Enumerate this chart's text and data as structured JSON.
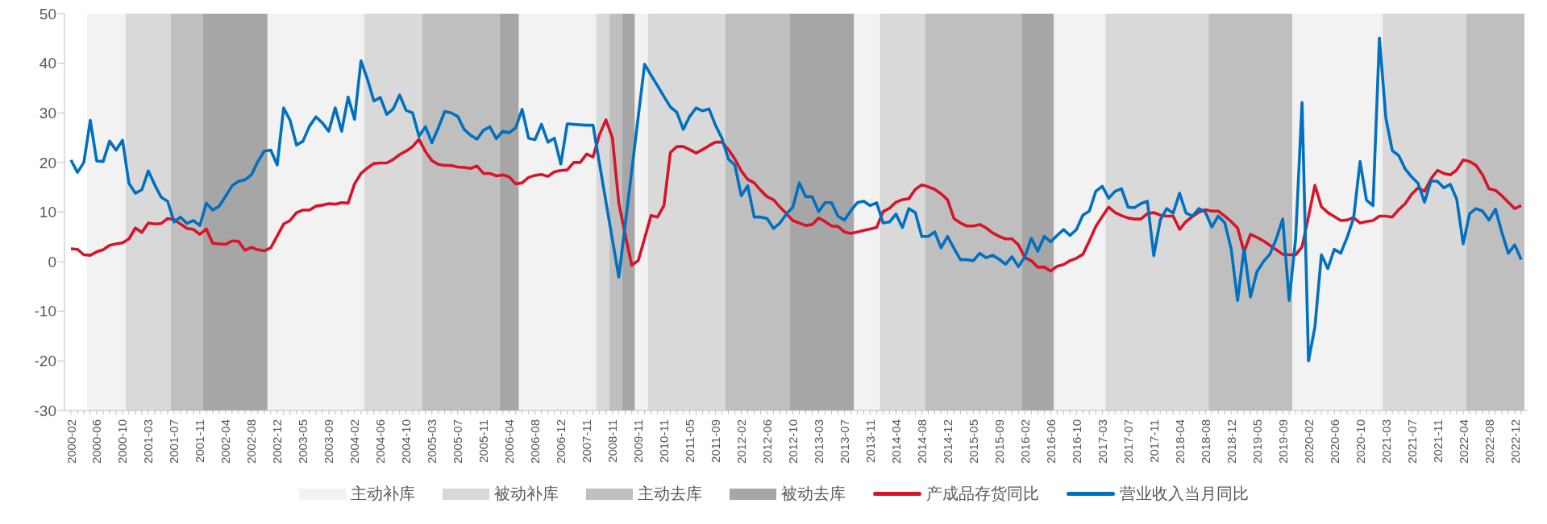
{
  "chart_data": {
    "type": "line",
    "legend": "bottom",
    "ylim": [
      -30,
      50
    ],
    "yticks": [
      -30,
      -20,
      -10,
      0,
      10,
      20,
      30,
      40,
      50
    ],
    "categories": [
      "2000-02",
      null,
      null,
      null,
      "2000-06",
      null,
      null,
      null,
      "2000-10",
      null,
      null,
      null,
      "2001-03",
      null,
      null,
      null,
      "2001-07",
      null,
      null,
      null,
      "2001-11",
      null,
      null,
      null,
      "2002-04",
      null,
      null,
      null,
      "2002-08",
      null,
      null,
      null,
      "2002-12",
      null,
      null,
      null,
      "2003-05",
      null,
      null,
      null,
      "2003-09",
      null,
      null,
      null,
      "2004-02",
      null,
      null,
      null,
      "2004-06",
      null,
      null,
      null,
      "2004-10",
      null,
      null,
      null,
      "2005-03",
      null,
      null,
      null,
      "2005-07",
      null,
      null,
      null,
      "2005-11",
      null,
      null,
      null,
      "2006-04",
      null,
      null,
      null,
      "2006-08",
      null,
      null,
      null,
      "2006-12",
      null,
      null,
      null,
      "2007-11",
      null,
      null,
      null,
      "2008-11",
      null,
      null,
      null,
      "2009-11",
      null,
      null,
      null,
      "2010-11",
      null,
      null,
      null,
      "2011-05",
      null,
      null,
      null,
      "2011-09",
      null,
      null,
      null,
      "2012-02",
      null,
      null,
      null,
      "2012-06",
      null,
      null,
      null,
      "2012-10",
      null,
      null,
      null,
      "2013-03",
      null,
      null,
      null,
      "2013-07",
      null,
      null,
      null,
      "2013-11",
      null,
      null,
      null,
      "2014-04",
      null,
      null,
      null,
      "2014-08",
      null,
      null,
      null,
      "2014-12",
      null,
      null,
      null,
      "2015-05",
      null,
      null,
      null,
      "2015-09",
      null,
      null,
      null,
      "2016-02",
      null,
      null,
      null,
      "2016-06",
      null,
      null,
      null,
      "2016-10",
      null,
      null,
      null,
      "2017-03",
      null,
      null,
      null,
      "2017-07",
      null,
      null,
      null,
      "2017-11",
      null,
      null,
      null,
      "2018-04",
      null,
      null,
      null,
      "2018-08",
      null,
      null,
      null,
      "2018-12",
      null,
      null,
      null,
      "2019-05",
      null,
      null,
      null,
      "2019-09",
      null,
      null,
      null,
      "2020-02",
      null,
      null,
      null,
      "2020-06",
      null,
      null,
      null,
      "2020-10",
      null,
      null,
      null,
      "2021-03",
      null,
      null,
      null,
      "2021-07",
      null,
      null,
      null,
      "2021-11",
      null,
      null,
      null,
      "2022-04",
      null,
      null,
      null,
      "2022-08",
      null,
      null,
      null,
      "2022-12",
      null
    ],
    "annotations": [
      "主动补库",
      "被动补库",
      "主动去库",
      "被动去库"
    ],
    "series": [
      {
        "name": "产成品存货同比",
        "color": "#d7142a",
        "values": [
          2.6,
          2.5,
          1.4,
          1.3,
          2,
          2.4,
          3.3,
          3.6,
          3.8,
          4.6,
          6.8,
          5.9,
          7.8,
          7.6,
          7.7,
          8.7,
          8.5,
          7.6,
          6.7,
          6.5,
          5.5,
          6.6,
          3.7,
          3.6,
          3.5,
          4.2,
          4.1,
          2.3,
          2.9,
          2.4,
          2.2,
          2.8,
          5.2,
          7.6,
          8.3,
          9.9,
          10.4,
          10.4,
          11.2,
          11.4,
          11.7,
          11.6,
          11.9,
          11.8,
          15.7,
          17.8,
          18.9,
          19.8,
          19.9,
          19.9,
          20.6,
          21.6,
          22.3,
          23.2,
          24.7,
          22.2,
          20.4,
          19.6,
          19.4,
          19.4,
          19.1,
          19,
          18.8,
          19.3,
          17.8,
          17.8,
          17.3,
          17.5,
          17.1,
          15.7,
          15.9,
          17,
          17.4,
          17.6,
          17.2,
          18.1,
          18.4,
          18.5,
          20,
          20,
          21.7,
          21.1,
          25.6,
          28.6,
          25,
          11.8,
          5.4,
          -0.7,
          0.2,
          4.7,
          9.3,
          9,
          11.3,
          22,
          23.2,
          23.2,
          22.6,
          21.9,
          22.6,
          23.4,
          24.1,
          24.1,
          22.6,
          20.7,
          18.3,
          16.6,
          15.9,
          14.4,
          13.1,
          12.5,
          11,
          9.7,
          8.3,
          7.8,
          7.3,
          7.5,
          8.8,
          8.1,
          7.2,
          7.1,
          6,
          5.7,
          6,
          6.3,
          6.6,
          6.9,
          10.1,
          10.8,
          12,
          12.5,
          12.7,
          14.6,
          15.5,
          15.1,
          14.6,
          13.7,
          12.5,
          8.7,
          7.8,
          7.2,
          7.2,
          7.5,
          6.8,
          5.8,
          5.1,
          4.6,
          4.6,
          3.4,
          0.8,
          0.2,
          -1.1,
          -1.1,
          -1.9,
          -0.9,
          -0.6,
          0.2,
          0.7,
          1.5,
          4.2,
          7.1,
          9.1,
          11,
          9.9,
          9.3,
          8.8,
          8.6,
          8.6,
          9.7,
          9.9,
          9.4,
          9.2,
          9.2,
          6.5,
          8.1,
          9.1,
          10,
          10.5,
          10.2,
          10.2,
          9.2,
          8.1,
          6.8,
          2,
          5.5,
          4.9,
          4.2,
          3.3,
          2.4,
          1.5,
          1.4,
          1.4,
          3,
          9.1,
          15.4,
          11.1,
          9.9,
          9.1,
          8.3,
          8.4,
          8.9,
          7.8,
          8.1,
          8.3,
          9.2,
          9.2,
          9,
          10.5,
          11.7,
          13.6,
          14.9,
          14.2,
          16.7,
          18.4,
          17.8,
          17.5,
          18.5,
          20.5,
          20.2,
          19.4,
          17.5,
          14.7,
          14.4,
          13.3,
          12,
          10.7,
          11.3
        ]
      },
      {
        "name": "营业收入当月同比",
        "color": "#0070c0",
        "values": [
          20.5,
          18,
          20,
          28.5,
          20.3,
          20.2,
          24.3,
          22.5,
          24.5,
          15.8,
          13.8,
          14.5,
          18.3,
          15.5,
          13,
          12.2,
          8,
          9,
          7.7,
          8.3,
          7.3,
          11.8,
          10.4,
          11.2,
          13.2,
          15.3,
          16.2,
          16.5,
          17.5,
          20.2,
          22.3,
          22.5,
          19.5,
          31,
          28.5,
          23.5,
          24.3,
          27.3,
          29.2,
          28,
          26.3,
          31,
          26.3,
          33.2,
          28.7,
          40.5,
          36.8,
          32.4,
          33.1,
          29.7,
          30.8,
          33.6,
          30.5,
          30,
          25.3,
          27.2,
          24,
          27,
          30.3,
          30,
          29.3,
          26.7,
          25.5,
          24.7,
          26.5,
          27.2,
          24.8,
          26.3,
          26,
          27,
          30.7,
          24.9,
          24.6,
          27.7,
          24.1,
          24.9,
          19.7,
          27.8,
          27.7,
          27.6,
          27.5,
          27.5,
          19.8,
          12.1,
          4.5,
          -3.1,
          7.6,
          18.3,
          29.1,
          39.8,
          37.6,
          35.5,
          33.3,
          31.2,
          30.1,
          26.7,
          29.3,
          31,
          30.4,
          30.8,
          27.5,
          24.9,
          20.7,
          19.5,
          13.3,
          15.3,
          9,
          9,
          8.7,
          6.7,
          7.8,
          9.6,
          11,
          15.9,
          13.1,
          13.1,
          10.1,
          11.9,
          11.9,
          9.2,
          8.4,
          10.3,
          11.9,
          12.2,
          11.3,
          11.9,
          7.8,
          8,
          9.6,
          6.9,
          10.7,
          9.9,
          5.1,
          5.1,
          6,
          2.8,
          5.1,
          2.7,
          0.4,
          0.4,
          0.2,
          1.7,
          0.8,
          1.3,
          0.5,
          -0.5,
          1,
          -1,
          1,
          4.7,
          2.1,
          5.1,
          4,
          5.3,
          6.5,
          5.3,
          6.5,
          9.4,
          10.2,
          14.2,
          15.2,
          12.8,
          14.2,
          14.7,
          11,
          10.9,
          11.7,
          12.2,
          1.2,
          8.4,
          10.7,
          9.8,
          13.8,
          9.8,
          9.2,
          10.7,
          10,
          7,
          9.2,
          7.9,
          2.6,
          -7.8,
          2.6,
          -7.1,
          -2,
          0,
          1.5,
          4.6,
          8.6,
          -7.8,
          4.6,
          32.1,
          -20,
          -13.1,
          1.4,
          -1.4,
          2.5,
          1.7,
          4.9,
          8.8,
          20.2,
          12.4,
          11.3,
          45.1,
          29,
          22.4,
          21.4,
          18.7,
          17.1,
          15.8,
          12,
          16.3,
          16.2,
          14.9,
          15.6,
          12.6,
          3.6,
          9.7,
          10.7,
          10.2,
          8.4,
          10.6,
          5.9,
          1.7,
          3.4,
          0.4
        ]
      }
    ]
  }
}
